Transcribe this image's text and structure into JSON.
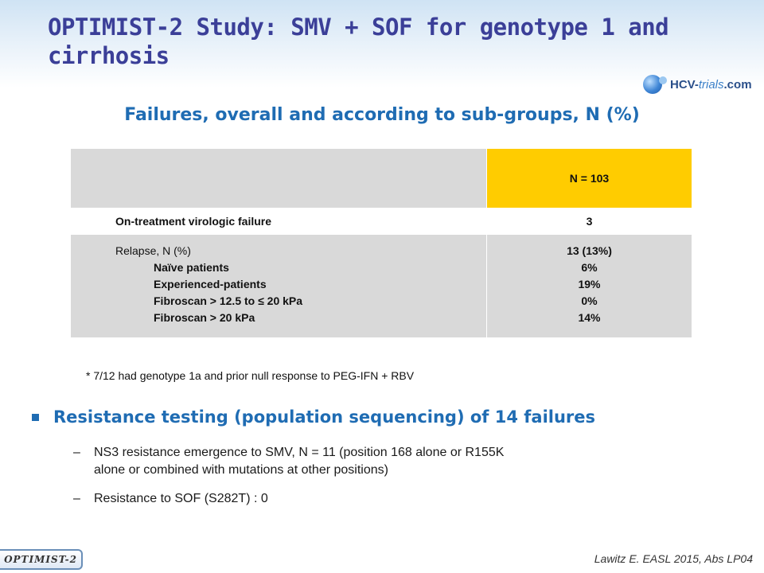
{
  "title": "OPTIMIST-2 Study: SMV + SOF for genotype 1 and cirrhosis",
  "logo": {
    "brand": "HCV",
    "dash": "-",
    "trials": "trials",
    "com": ".com"
  },
  "subtitle": "Failures, overall and according to sub-groups, N (%)",
  "table": {
    "header": "N = 103",
    "rows": [
      {
        "label": "On-treatment virologic failure",
        "value": "3"
      },
      {
        "label": "Relapse, N (%)",
        "value": "13 (13%)"
      }
    ],
    "subrows": [
      {
        "label": "Naïve patients",
        "value": "6%"
      },
      {
        "label": "Experienced-patients",
        "value": "19%"
      },
      {
        "label": "Fibroscan > 12.5 to ≤ 20 kPa",
        "value": "0%"
      },
      {
        "label": "Fibroscan > 20 kPa",
        "value": "14%"
      }
    ]
  },
  "footnote": "* 7/12 had genotype 1a and prior null response to PEG-IFN + RBV",
  "bullet": "Resistance testing (population sequencing) of 14 failures",
  "subbullets": [
    {
      "dash": "–",
      "line1": "NS3 resistance emergence to SMV, N = 11 (position 168 alone or R155K",
      "line2": "alone or combined with mutations at other positions)"
    },
    {
      "dash": "–",
      "line1": "Resistance to SOF (S282T) : 0"
    }
  ],
  "tag": "OPTIMIST-2",
  "citation": "Lawitz E. EASL 2015, Abs LP04"
}
